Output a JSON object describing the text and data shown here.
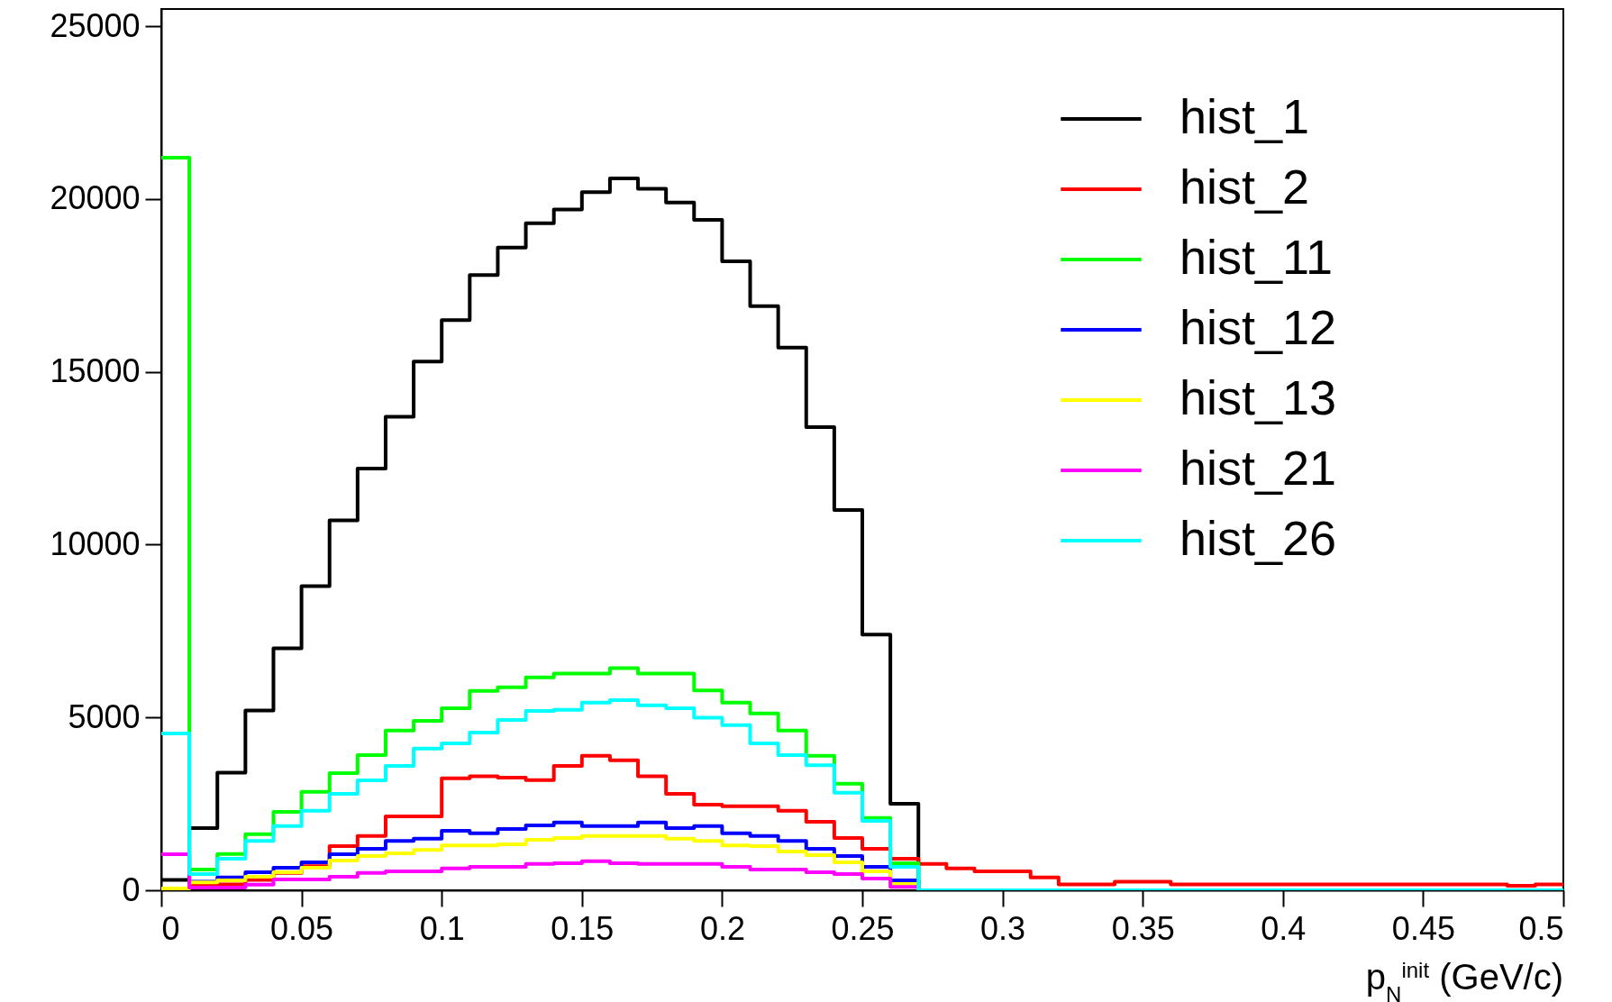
{
  "chart_data": {
    "type": "histogram",
    "xlabel": "p$_{N}$$^{init}$ (GeV/c)",
    "bins": [
      0,
      0.01,
      0.02,
      0.03,
      0.04,
      0.05,
      0.06,
      0.07,
      0.08,
      0.09,
      0.1,
      0.11,
      0.12,
      0.13,
      0.14,
      0.15,
      0.16,
      0.17,
      0.18,
      0.19,
      0.2,
      0.21,
      0.22,
      0.23,
      0.24,
      0.25,
      0.26,
      0.27,
      0.28,
      0.29,
      0.3,
      0.31,
      0.32,
      0.33,
      0.34,
      0.35,
      0.36,
      0.37,
      0.38,
      0.39,
      0.4,
      0.41,
      0.42,
      0.43,
      0.44,
      0.45,
      0.46,
      0.47,
      0.48,
      0.49,
      0.5
    ],
    "series": [
      {
        "name": "hist_1",
        "color": "#000000",
        "values": [
          300,
          1800,
          3400,
          5200,
          7000,
          8800,
          10700,
          12200,
          13700,
          15300,
          16500,
          17800,
          18600,
          19300,
          19700,
          20200,
          20600,
          20300,
          19900,
          19400,
          18200,
          16900,
          15700,
          13400,
          11000,
          7400,
          2500,
          0,
          0,
          0,
          0,
          0,
          0,
          0,
          0,
          0,
          0,
          0,
          0,
          0,
          0,
          0,
          0,
          0,
          0,
          0,
          0,
          0,
          0,
          0
        ]
      },
      {
        "name": "hist_2",
        "color": "#ff0000",
        "values": [
          0,
          170,
          170,
          300,
          500,
          700,
          1280,
          1570,
          2140,
          2140,
          3240,
          3300,
          3260,
          3190,
          3600,
          3890,
          3760,
          3300,
          2790,
          2480,
          2430,
          2430,
          2300,
          1980,
          1510,
          1200,
          910,
          760,
          630,
          550,
          550,
          370,
          170,
          170,
          250,
          250,
          170,
          170,
          170,
          170,
          170,
          170,
          170,
          170,
          170,
          170,
          170,
          170,
          130,
          170
        ]
      },
      {
        "name": "hist_11",
        "color": "#00ff00",
        "values": [
          21200,
          600,
          1050,
          1620,
          2270,
          2850,
          3390,
          3910,
          4620,
          4900,
          5270,
          5770,
          5870,
          6160,
          6270,
          6270,
          6430,
          6270,
          6270,
          5780,
          5430,
          5120,
          4620,
          3890,
          3080,
          2090,
          780,
          0,
          0,
          0,
          0,
          0,
          0,
          0,
          0,
          0,
          0,
          0,
          0,
          0,
          0,
          0,
          0,
          0,
          0,
          0,
          0,
          0,
          0,
          0
        ]
      },
      {
        "name": "hist_12",
        "color": "#0000ff",
        "values": [
          0,
          250,
          370,
          520,
          650,
          810,
          1040,
          1200,
          1430,
          1490,
          1720,
          1650,
          1770,
          1880,
          1960,
          1860,
          1860,
          1960,
          1800,
          1860,
          1650,
          1570,
          1430,
          1200,
          990,
          680,
          290,
          0,
          0,
          0,
          0,
          0,
          0,
          0,
          0,
          0,
          0,
          0,
          0,
          0,
          0,
          0,
          0,
          0,
          0,
          0,
          0,
          0,
          0,
          0
        ]
      },
      {
        "name": "hist_13",
        "color": "#ffff00",
        "values": [
          50,
          230,
          290,
          390,
          520,
          650,
          860,
          990,
          1070,
          1170,
          1300,
          1300,
          1330,
          1460,
          1510,
          1570,
          1570,
          1570,
          1490,
          1430,
          1300,
          1280,
          1120,
          1020,
          810,
          550,
          180,
          0,
          0,
          0,
          0,
          0,
          0,
          0,
          0,
          0,
          0,
          0,
          0,
          0,
          0,
          0,
          0,
          0,
          0,
          0,
          0,
          0,
          0,
          0
        ]
      },
      {
        "name": "hist_21",
        "color": "#ff00ff",
        "values": [
          1040,
          80,
          80,
          160,
          310,
          310,
          390,
          500,
          550,
          550,
          630,
          680,
          680,
          760,
          780,
          840,
          780,
          760,
          760,
          760,
          680,
          600,
          600,
          520,
          470,
          340,
          100,
          0,
          0,
          0,
          0,
          0,
          0,
          0,
          0,
          0,
          0,
          0,
          0,
          0,
          0,
          0,
          0,
          0,
          0,
          0,
          0,
          0,
          0,
          0
        ]
      },
      {
        "name": "hist_26",
        "color": "#00ffff",
        "values": [
          4540,
          470,
          910,
          1430,
          1860,
          2300,
          2790,
          3180,
          3600,
          4100,
          4250,
          4560,
          4930,
          5190,
          5220,
          5430,
          5500,
          5350,
          5270,
          4990,
          4780,
          4250,
          3910,
          3620,
          2820,
          2010,
          680,
          0,
          0,
          0,
          0,
          0,
          0,
          0,
          0,
          0,
          0,
          0,
          0,
          0,
          0,
          0,
          0,
          0,
          0,
          0,
          0,
          0,
          0,
          0
        ]
      }
    ],
    "xlim": [
      0,
      0.5
    ],
    "xticks": [
      0,
      0.05,
      0.1,
      0.15,
      0.2,
      0.25,
      0.3,
      0.35,
      0.4,
      0.45,
      0.5
    ],
    "ylim": [
      0,
      25500
    ],
    "yticks": [
      0,
      5000,
      10000,
      15000,
      20000,
      25000
    ],
    "legend": "top right"
  }
}
